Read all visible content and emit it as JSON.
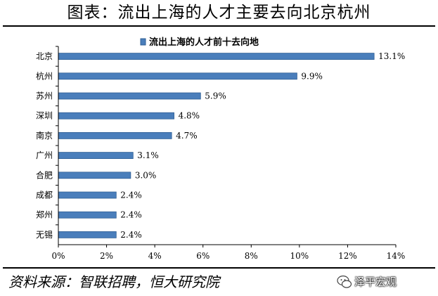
{
  "page": {
    "title": "图表：流出上海的人才主要去向北京杭州",
    "source": "资料来源：智联招聘，恒大研究院",
    "watermark": "泽平宏观"
  },
  "colors": {
    "bar_fill": "#4a7ebb",
    "bar_edge": "#2f5f94"
  },
  "chart_data": {
    "type": "bar",
    "orientation": "horizontal",
    "categories": [
      "北京",
      "杭州",
      "苏州",
      "深圳",
      "南京",
      "广州",
      "合肥",
      "成都",
      "郑州",
      "无锡"
    ],
    "series": [
      {
        "name": "流出上海的人才前十去向地",
        "values": [
          13.1,
          9.9,
          5.9,
          4.8,
          4.7,
          3.1,
          3.0,
          2.4,
          2.4,
          2.4
        ]
      }
    ],
    "value_labels": [
      "13.1%",
      "9.9%",
      "5.9%",
      "4.8%",
      "4.7%",
      "3.1%",
      "3.0%",
      "2.4%",
      "2.4%",
      "2.4%"
    ],
    "xlim": [
      0,
      14
    ],
    "xticks": [
      0,
      2,
      4,
      6,
      8,
      10,
      12,
      14
    ],
    "xtick_labels": [
      "0%",
      "2%",
      "4%",
      "6%",
      "8%",
      "10%",
      "12%",
      "14%"
    ],
    "grid": false,
    "legend_position": "top-center"
  }
}
